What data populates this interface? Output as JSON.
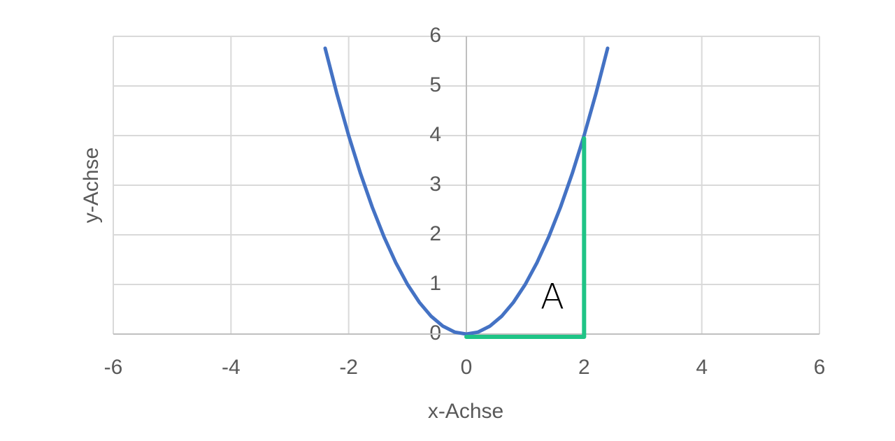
{
  "chart_data": {
    "type": "line",
    "x_label": "x-Achse",
    "y_label": "y-Achse",
    "annotation": "A",
    "xlim": [
      -6,
      6
    ],
    "xticks": [
      -6,
      -4,
      -2,
      0,
      2,
      4,
      6
    ],
    "ylim": [
      0,
      6
    ],
    "yticks": [
      0,
      1,
      2,
      3,
      4,
      5,
      6
    ],
    "grid": true,
    "series": [
      {
        "color": "#4472c4",
        "x": [
          -2.4,
          -2.2,
          -2,
          -1.8,
          -1.6,
          -1.4,
          -1.2,
          -1,
          -0.8,
          -0.6,
          -0.4,
          -0.2,
          0,
          0.2,
          0.4,
          0.6,
          0.8,
          1,
          1.2,
          1.4,
          1.6,
          1.8,
          2,
          2.2,
          2.4
        ],
        "values": [
          5.76,
          4.84,
          4,
          3.24,
          2.56,
          1.96,
          1.44,
          1,
          0.64,
          0.36,
          0.16,
          0.04,
          0,
          0.04,
          0.16,
          0.36,
          0.64,
          1,
          1.44,
          1.96,
          2.56,
          3.24,
          4,
          4.84,
          5.76
        ]
      },
      {
        "color": "#1fc486",
        "x": [
          0,
          2,
          2
        ],
        "values": [
          0,
          0,
          4
        ]
      }
    ]
  }
}
